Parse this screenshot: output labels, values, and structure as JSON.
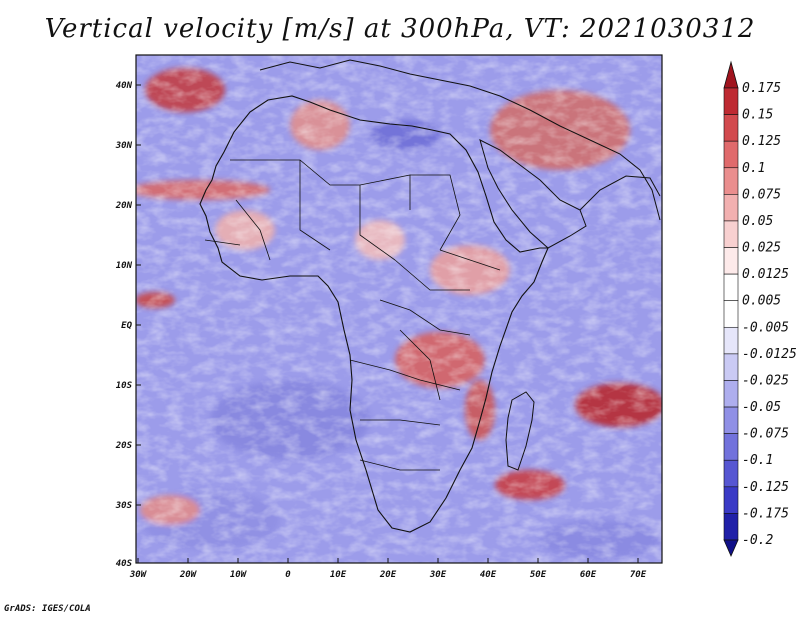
{
  "title": "Vertical velocity [m/s] at 300hPa, VT: 2021030312",
  "credit": "GrADS: IGES/COLA",
  "lat_labels": [
    "40N",
    "30N",
    "20N",
    "10N",
    "EQ",
    "10S",
    "20S",
    "30S",
    "40S"
  ],
  "lon_labels": [
    "30W",
    "20W",
    "10W",
    "0",
    "10E",
    "20E",
    "30E",
    "40E",
    "50E",
    "60E",
    "70E"
  ],
  "colorbar": {
    "labels": [
      "0.175",
      "0.15",
      "0.125",
      "0.1",
      "0.075",
      "0.05",
      "0.025",
      "0.0125",
      "0.005",
      "-0.005",
      "-0.0125",
      "-0.025",
      "-0.05",
      "-0.075",
      "-0.1",
      "-0.125",
      "-0.175",
      "-0.2"
    ],
    "colors": [
      "#a0141e",
      "#be2a32",
      "#d24a4e",
      "#e06a6c",
      "#ea8e8e",
      "#f2b0b0",
      "#f8d0d0",
      "#fdeaea",
      "#ffffff",
      "#ffffff",
      "#e6e6fa",
      "#cacaf4",
      "#aeaeee",
      "#9090e6",
      "#7272dc",
      "#5656d2",
      "#3a3ac6",
      "#2020a8",
      "#101088"
    ]
  }
}
